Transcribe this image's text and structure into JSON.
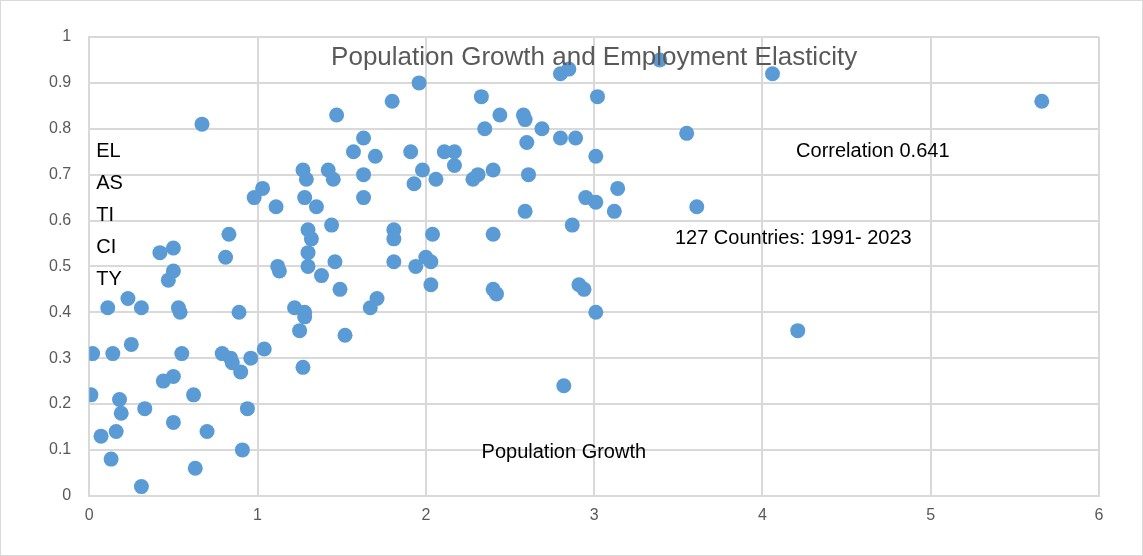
{
  "chart_data": {
    "type": "scatter",
    "title": "Population Growth and Employment Elasticity",
    "xlabel": "Population Growth",
    "ylabel": "EL\nAS\nTI\nCI\nTY",
    "annotations": [
      "Correlation 0.641",
      "127 Countries: 1991- 2023"
    ],
    "xlim": [
      0,
      6
    ],
    "xticks": [
      0,
      1,
      2,
      3,
      4,
      5,
      6
    ],
    "ylim": [
      0,
      1
    ],
    "yticks": [
      0,
      0.1,
      0.2,
      0.3,
      0.4,
      0.5,
      0.6,
      0.7,
      0.8,
      0.9,
      1
    ],
    "grid": true,
    "legend": false,
    "marker": "circle",
    "series": [
      {
        "color": "#5b9bd5",
        "x": [
          0.01,
          0.02,
          0.07,
          0.13,
          0.11,
          0.14,
          0.16,
          0.18,
          0.19,
          0.23,
          0.25,
          0.31,
          0.31,
          0.33,
          0.42,
          0.44,
          0.47,
          0.5,
          0.5,
          0.5,
          0.5,
          0.53,
          0.54,
          0.55,
          0.62,
          0.63,
          0.67,
          0.7,
          0.79,
          0.81,
          0.83,
          0.84,
          0.85,
          0.89,
          0.9,
          0.91,
          0.94,
          0.96,
          0.98,
          1.03,
          1.04,
          1.11,
          1.12,
          1.13,
          1.22,
          1.25,
          1.27,
          1.28,
          1.27,
          1.28,
          1.29,
          1.3,
          1.3,
          1.3,
          1.32,
          1.28,
          1.35,
          1.38,
          1.42,
          1.44,
          1.45,
          1.46,
          1.47,
          1.49,
          1.52,
          1.57,
          1.63,
          1.63,
          1.63,
          1.67,
          1.7,
          1.71,
          1.8,
          1.81,
          1.81,
          1.81,
          1.91,
          1.93,
          1.94,
          1.96,
          1.98,
          2.0,
          2.03,
          2.03,
          2.04,
          2.06,
          2.11,
          2.17,
          2.17,
          2.28,
          2.31,
          2.33,
          2.35,
          2.4,
          2.4,
          2.4,
          2.42,
          2.44,
          2.58,
          2.59,
          2.59,
          2.6,
          2.61,
          2.69,
          2.8,
          2.82,
          2.85,
          2.8,
          2.87,
          2.89,
          2.91,
          2.94,
          2.95,
          3.01,
          3.01,
          3.01,
          3.02,
          3.12,
          3.14,
          3.39,
          3.55,
          3.61,
          4.06,
          4.21,
          5.66
        ],
        "values": [
          0.22,
          0.31,
          0.13,
          0.08,
          0.41,
          0.31,
          0.14,
          0.21,
          0.18,
          0.43,
          0.33,
          0.41,
          0.02,
          0.19,
          0.53,
          0.25,
          0.47,
          0.54,
          0.49,
          0.26,
          0.16,
          0.41,
          0.4,
          0.31,
          0.22,
          0.06,
          0.81,
          0.14,
          0.31,
          0.52,
          0.57,
          0.3,
          0.29,
          0.4,
          0.27,
          0.1,
          0.19,
          0.3,
          0.65,
          0.67,
          0.32,
          0.63,
          0.5,
          0.49,
          0.41,
          0.36,
          0.71,
          0.65,
          0.28,
          0.4,
          0.69,
          0.58,
          0.53,
          0.5,
          0.56,
          0.39,
          0.63,
          0.48,
          0.71,
          0.59,
          0.69,
          0.51,
          0.83,
          0.45,
          0.35,
          0.75,
          0.78,
          0.7,
          0.65,
          0.41,
          0.74,
          0.43,
          0.86,
          0.51,
          0.58,
          0.56,
          0.75,
          0.68,
          0.5,
          0.9,
          0.71,
          0.52,
          0.51,
          0.46,
          0.57,
          0.69,
          0.75,
          0.75,
          0.72,
          0.69,
          0.7,
          0.87,
          0.8,
          0.71,
          0.57,
          0.45,
          0.44,
          0.83,
          0.83,
          0.82,
          0.62,
          0.77,
          0.7,
          0.8,
          0.92,
          0.24,
          0.93,
          0.78,
          0.59,
          0.78,
          0.46,
          0.45,
          0.65,
          0.64,
          0.4,
          0.74,
          0.87,
          0.62,
          0.67,
          0.95,
          0.79,
          0.63,
          0.92,
          0.36,
          0.86
        ]
      }
    ]
  }
}
